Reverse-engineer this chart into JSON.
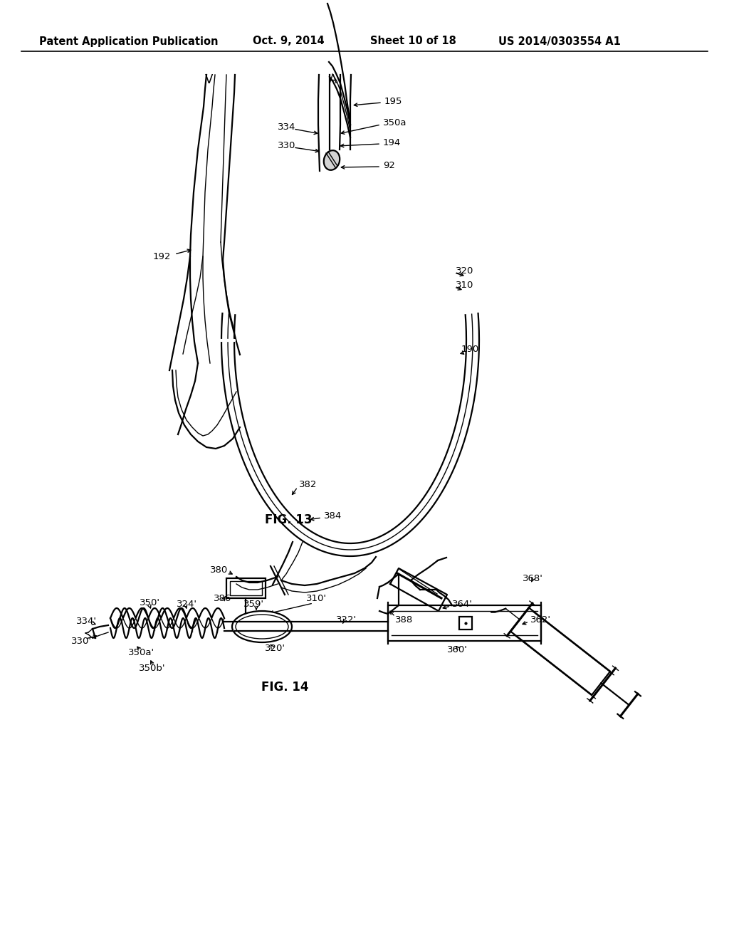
{
  "header_left": "Patent Application Publication",
  "header_date": "Oct. 9, 2014",
  "header_sheet": "Sheet 10 of 18",
  "header_patent": "US 2014/0303554 A1",
  "fig13_label": "FIG. 13",
  "fig14_label": "FIG. 14",
  "bg_color": "#ffffff",
  "line_color": "#000000",
  "text_color": "#000000",
  "lw1": 1.0,
  "lw2": 1.6,
  "lw3": 2.2,
  "fs_header": 10.5,
  "fs_label": 9.5,
  "fs_fig": 12
}
